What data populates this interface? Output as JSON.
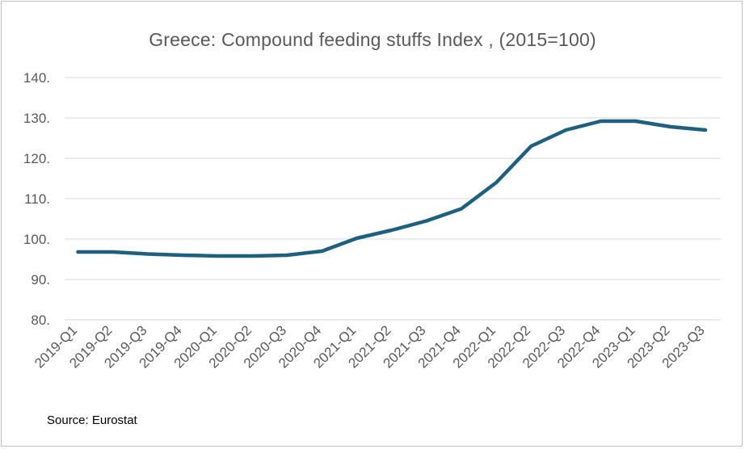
{
  "chart_data": {
    "type": "line",
    "title": "Greece: Compound feeding stuffs Index , (2015=100)",
    "xlabel": "",
    "ylabel": "",
    "ylim": [
      80,
      140
    ],
    "yticks": [
      "80.",
      "90.",
      "100.",
      "110.",
      "120.",
      "130.",
      "140."
    ],
    "categories": [
      "2019-Q1",
      "2019-Q2",
      "2019-Q3",
      "2019-Q4",
      "2020-Q1",
      "2020-Q2",
      "2020-Q3",
      "2020-Q4",
      "2021-Q1",
      "2021-Q2",
      "2021-Q3",
      "2021-Q4",
      "2022-Q1",
      "2022-Q2",
      "2022-Q3",
      "2022-Q4",
      "2023-Q1",
      "2023-Q2",
      "2023-Q3"
    ],
    "series": [
      {
        "values": [
          96.8,
          96.8,
          96.3,
          96.0,
          95.8,
          95.8,
          96.0,
          97.0,
          100.2,
          102.2,
          104.5,
          107.5,
          114.0,
          123.0,
          127.0,
          129.2,
          129.2,
          127.8,
          127.0
        ],
        "color": "#1f5f80"
      }
    ],
    "grid": true,
    "legend": "none",
    "source": "Source: Eurostat"
  }
}
